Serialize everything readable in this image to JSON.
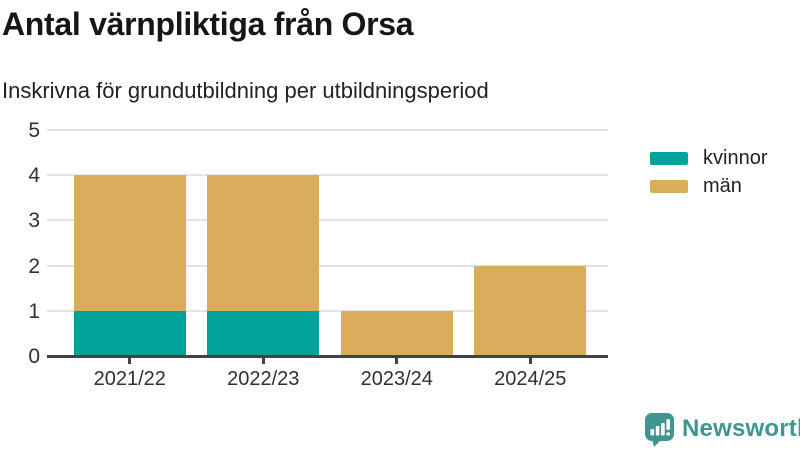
{
  "title": "Antal värnpliktiga från Orsa",
  "subtitle": "Inskrivna för grundutbildning per utbildningsperiod",
  "chart_data": {
    "type": "bar",
    "stacked": true,
    "title": "Antal värnpliktiga från Orsa",
    "subtitle": "Inskrivna för grundutbildning per utbildningsperiod",
    "categories": [
      "2021/22",
      "2022/23",
      "2023/24",
      "2024/25"
    ],
    "series": [
      {
        "name": "kvinnor",
        "color": "#00a299",
        "values": [
          1,
          1,
          0,
          0
        ]
      },
      {
        "name": "män",
        "color": "#d9ad5c",
        "values": [
          3,
          3,
          1,
          2
        ]
      }
    ],
    "xlabel": "",
    "ylabel": "",
    "ylim": [
      0,
      5
    ],
    "yticks": [
      0,
      1,
      2,
      3,
      4,
      5
    ],
    "grid": true,
    "legend_position": "top-right"
  },
  "colors": {
    "gridline": "#e4e4e4",
    "axis_line": "#424242",
    "axis_text": "#303030",
    "brand": "#3e968f"
  },
  "branding": {
    "logo_text": "Newsworthy"
  }
}
